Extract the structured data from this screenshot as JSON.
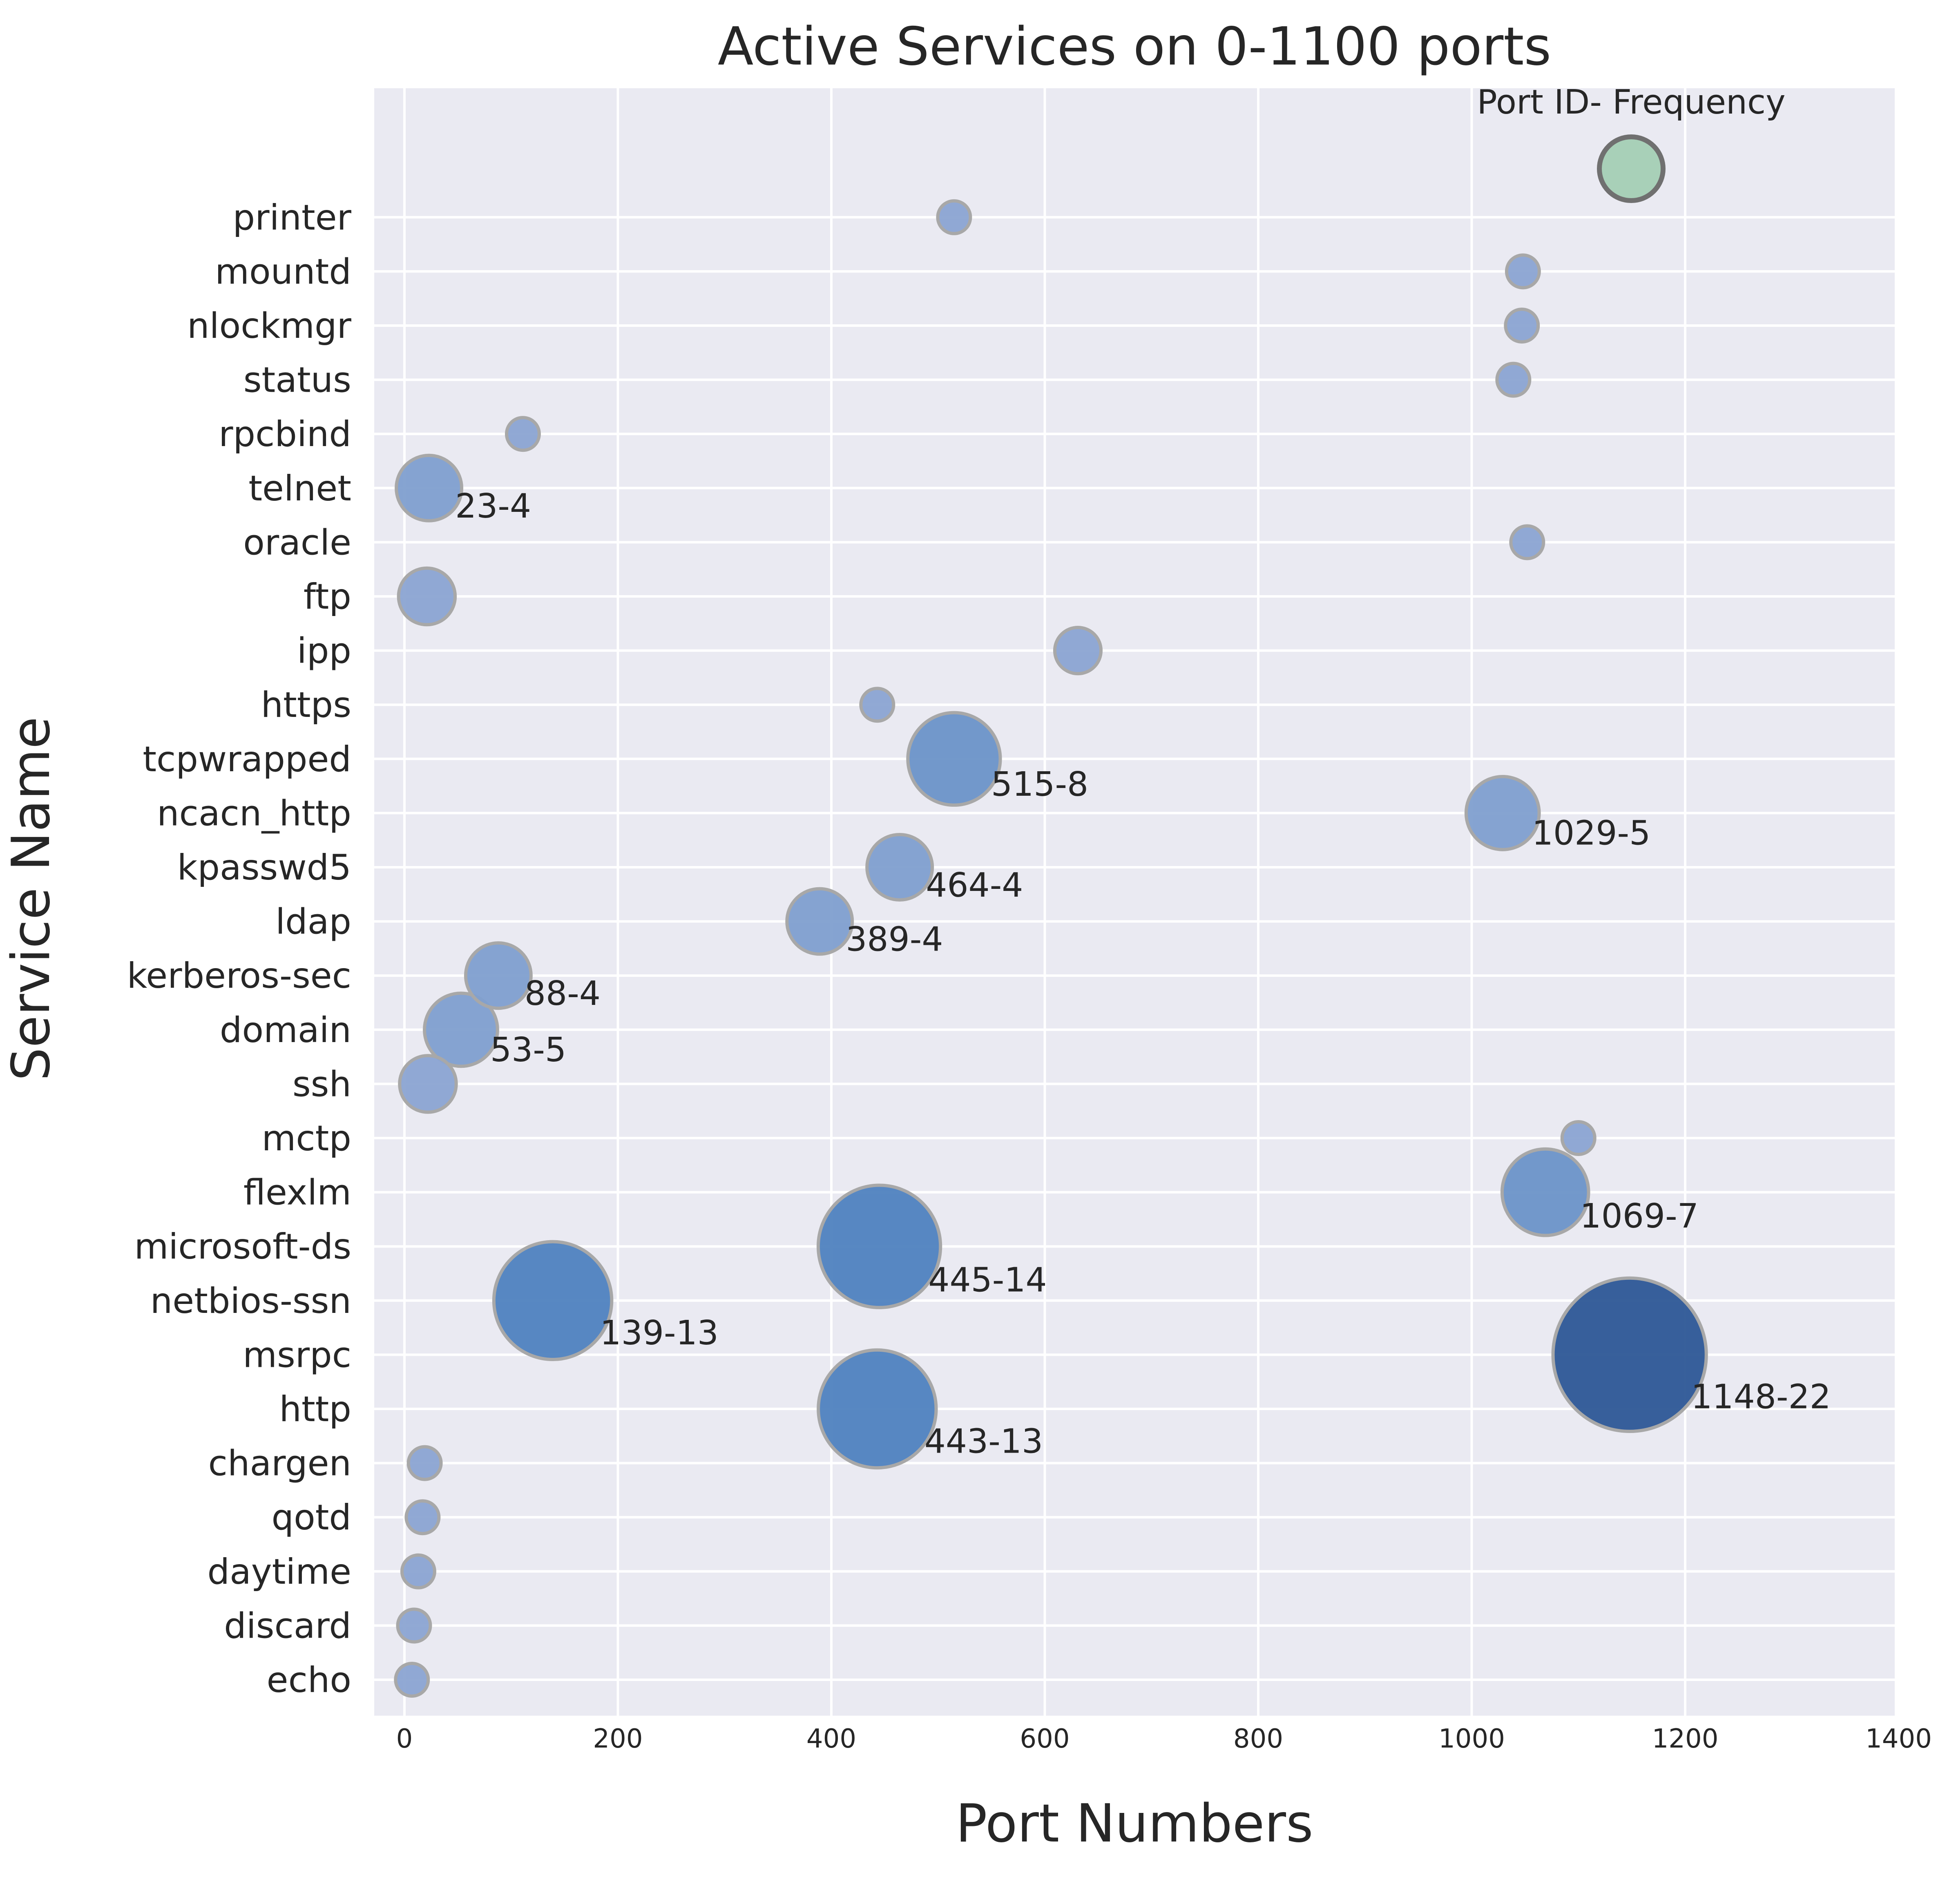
{
  "chart_data": {
    "type": "scatter",
    "title": "Active Services on 0-1100 ports",
    "xlabel": "Port Numbers",
    "ylabel": "Service Name",
    "xlim": [
      -30,
      1400
    ],
    "x_ticks": [
      "0",
      "200",
      "400",
      "600",
      "800",
      "1000",
      "1200",
      "1400"
    ],
    "grid": true,
    "categories": [
      "echo",
      "discard",
      "daytime",
      "qotd",
      "chargen",
      "http",
      "msrpc",
      "netbios-ssn",
      "microsoft-ds",
      "flexlm",
      "mctp",
      "ssh",
      "domain",
      "kerberos-sec",
      "ldap",
      "kpasswd5",
      "ncacn_http",
      "tcpwrapped",
      "https",
      "ipp",
      "ftp",
      "oracle",
      "telnet",
      "rpcbind",
      "status",
      "nlockmgr",
      "mountd",
      "printer"
    ],
    "points": [
      {
        "service": "echo",
        "port": 7,
        "frequency": 1,
        "label": ""
      },
      {
        "service": "discard",
        "port": 9,
        "frequency": 1,
        "label": ""
      },
      {
        "service": "daytime",
        "port": 13,
        "frequency": 1,
        "label": ""
      },
      {
        "service": "qotd",
        "port": 17,
        "frequency": 1,
        "label": ""
      },
      {
        "service": "chargen",
        "port": 19,
        "frequency": 1,
        "label": ""
      },
      {
        "service": "http",
        "port": 443,
        "frequency": 13,
        "label": "443-13"
      },
      {
        "service": "msrpc",
        "port": 1148,
        "frequency": 22,
        "label": "1148-22"
      },
      {
        "service": "netbios-ssn",
        "port": 139,
        "frequency": 13,
        "label": "139-13"
      },
      {
        "service": "microsoft-ds",
        "port": 445,
        "frequency": 14,
        "label": "445-14"
      },
      {
        "service": "flexlm",
        "port": 1069,
        "frequency": 7,
        "label": "1069-7"
      },
      {
        "service": "mctp",
        "port": 1100,
        "frequency": 1,
        "label": ""
      },
      {
        "service": "ssh",
        "port": 22,
        "frequency": 3,
        "label": ""
      },
      {
        "service": "domain",
        "port": 53,
        "frequency": 5,
        "label": "53-5"
      },
      {
        "service": "kerberos-sec",
        "port": 88,
        "frequency": 4,
        "label": "88-4"
      },
      {
        "service": "ldap",
        "port": 389,
        "frequency": 4,
        "label": "389-4"
      },
      {
        "service": "kpasswd5",
        "port": 464,
        "frequency": 4,
        "label": "464-4"
      },
      {
        "service": "ncacn_http",
        "port": 1029,
        "frequency": 5,
        "label": "1029-5"
      },
      {
        "service": "tcpwrapped",
        "port": 515,
        "frequency": 8,
        "label": "515-8"
      },
      {
        "service": "https",
        "port": 443,
        "frequency": 1,
        "label": ""
      },
      {
        "service": "ipp",
        "port": 631,
        "frequency": 2,
        "label": ""
      },
      {
        "service": "ftp",
        "port": 21,
        "frequency": 3,
        "label": ""
      },
      {
        "service": "oracle",
        "port": 1052,
        "frequency": 1,
        "label": ""
      },
      {
        "service": "telnet",
        "port": 23,
        "frequency": 4,
        "label": "23-4"
      },
      {
        "service": "rpcbind",
        "port": 111,
        "frequency": 1,
        "label": ""
      },
      {
        "service": "status",
        "port": 1039,
        "frequency": 1,
        "label": ""
      },
      {
        "service": "nlockmgr",
        "port": 1047,
        "frequency": 1,
        "label": ""
      },
      {
        "service": "mountd",
        "port": 1048,
        "frequency": 1,
        "label": ""
      },
      {
        "service": "printer",
        "port": 515,
        "frequency": 1,
        "label": ""
      }
    ],
    "legend": {
      "title": "Port ID- Frequency",
      "placement": "top-right",
      "color": "#a8d0b8"
    },
    "colors": {
      "background": "#eaeaf2",
      "grid": "#ffffff",
      "small": "#8ba4d2",
      "medium": "#4f82bf",
      "large": "#2d5796",
      "edge": "#a8a8a8"
    }
  }
}
